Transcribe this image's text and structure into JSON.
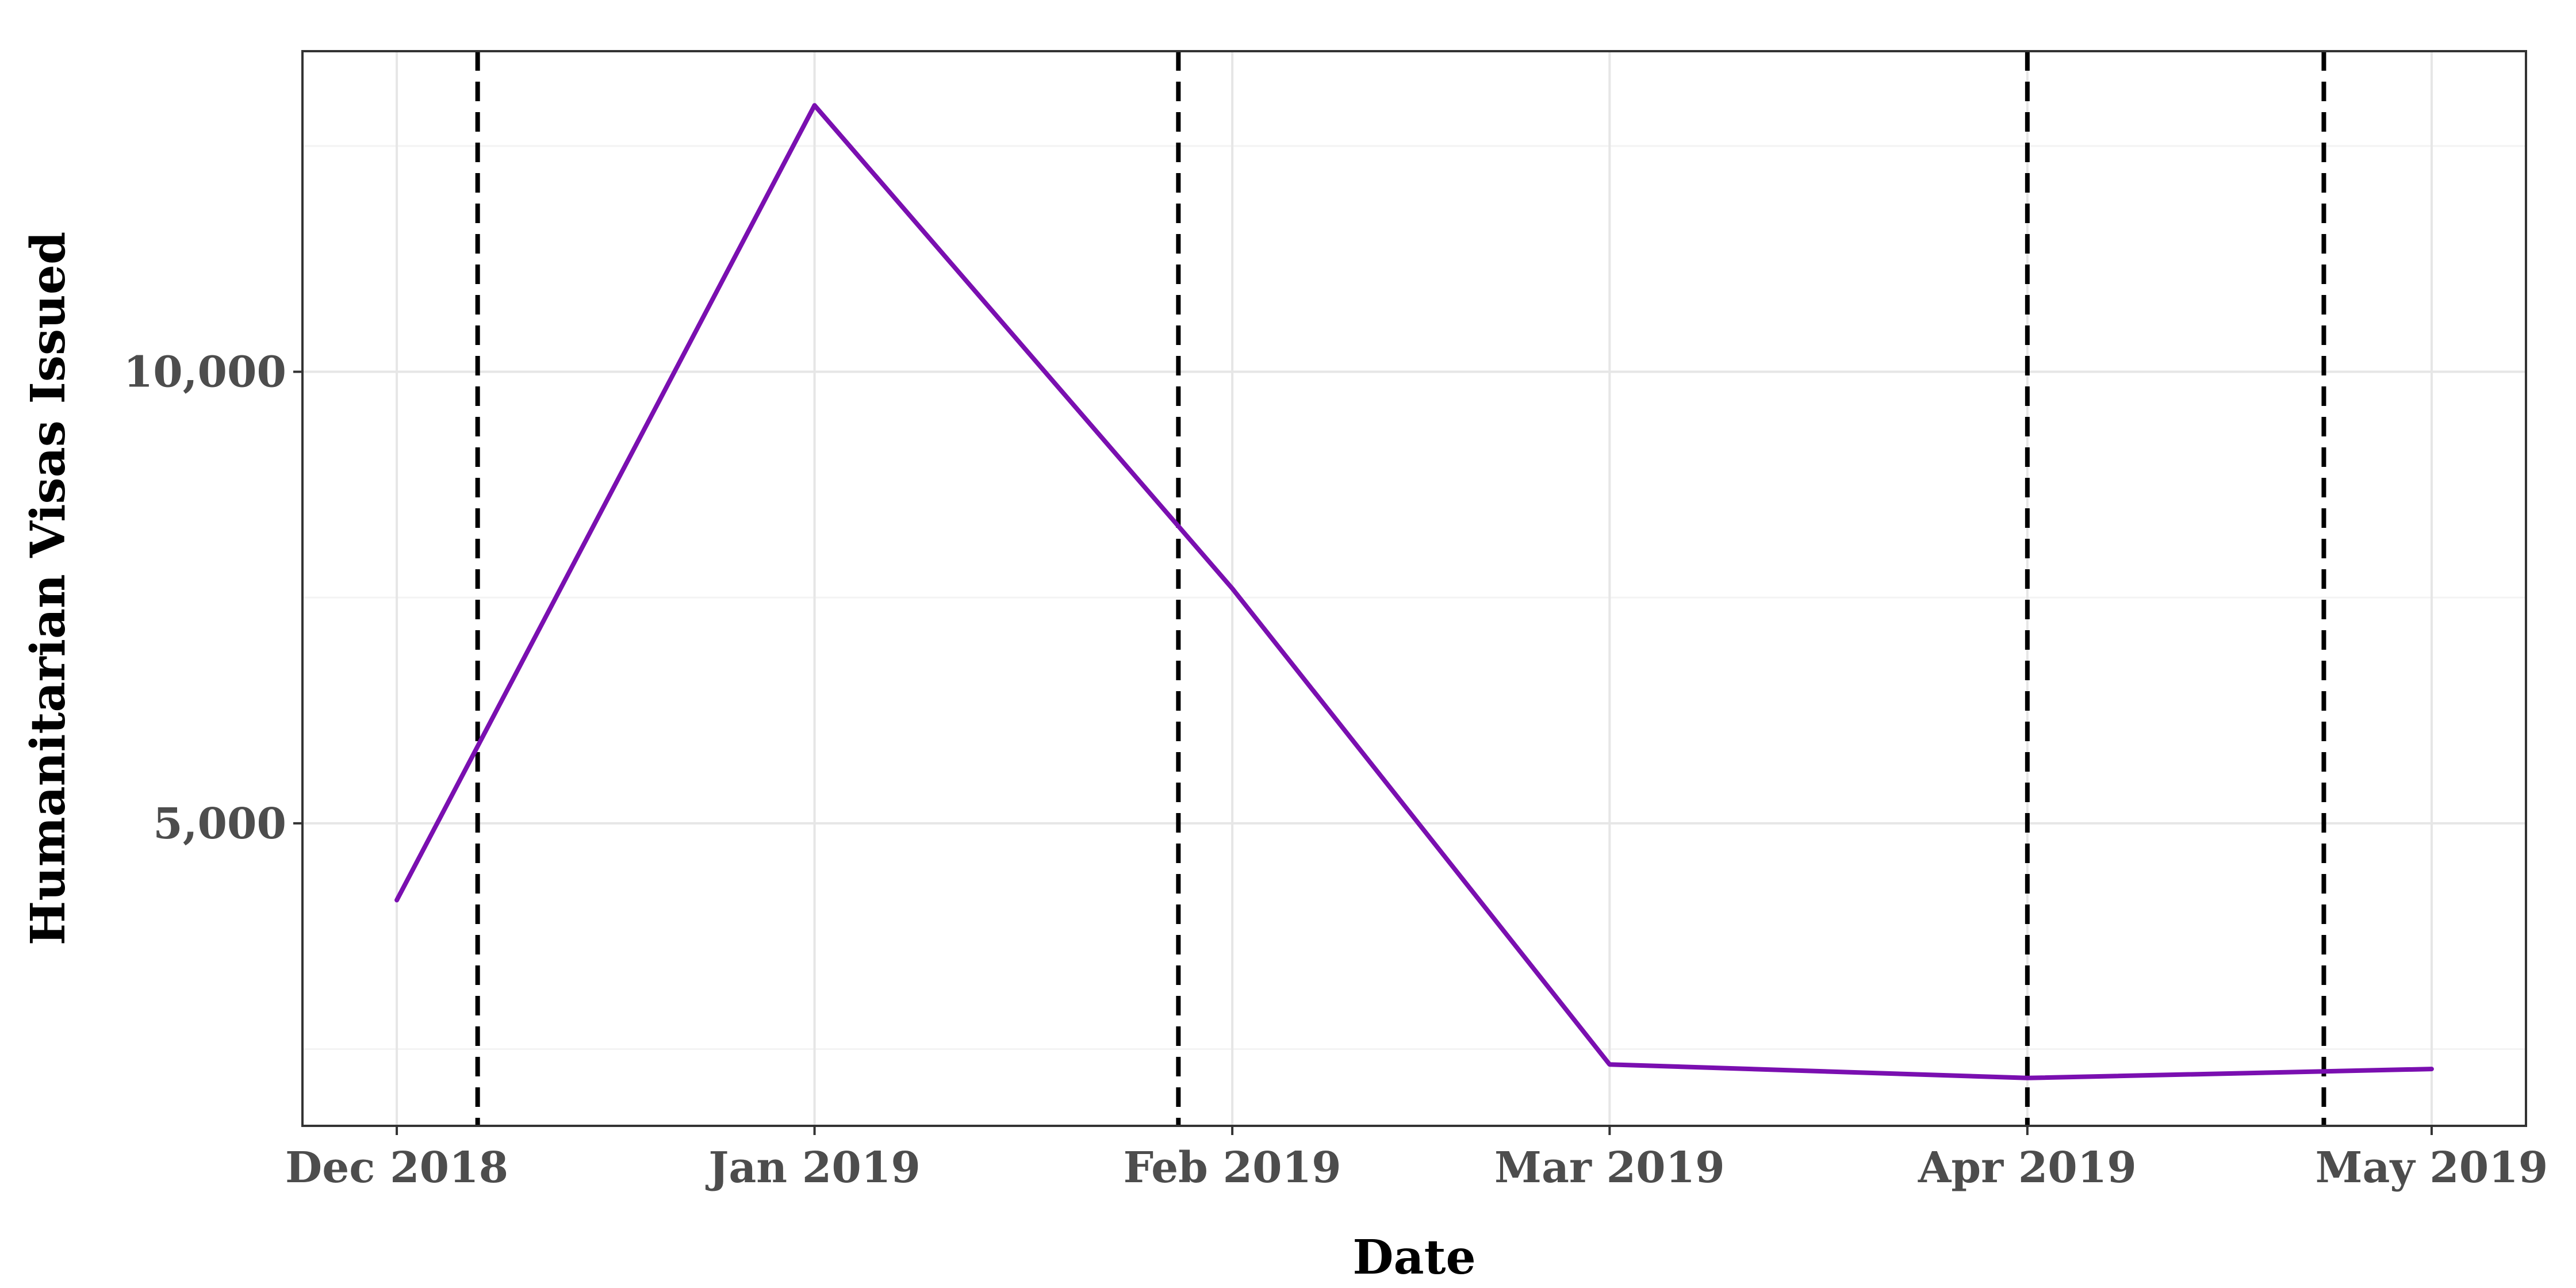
{
  "chart_data": {
    "type": "line",
    "title": "",
    "xlabel": "Date",
    "ylabel": "Humanitarian Visas Issued",
    "x_ticks": [
      {
        "date": "2018-12-01",
        "label": "Dec 2018"
      },
      {
        "date": "2019-01-01",
        "label": "Jan 2019"
      },
      {
        "date": "2019-02-01",
        "label": "Feb 2019"
      },
      {
        "date": "2019-03-01",
        "label": "Mar 2019"
      },
      {
        "date": "2019-04-01",
        "label": "Apr 2019"
      },
      {
        "date": "2019-05-01",
        "label": "May 2019"
      }
    ],
    "y_ticks": [
      {
        "value": 5000,
        "label": "5,000"
      },
      {
        "value": 10000,
        "label": "10,000"
      }
    ],
    "y_minor": [
      2500,
      7500,
      12500
    ],
    "xlim": [
      "2018-11-24",
      "2019-05-08"
    ],
    "ylim": [
      1650,
      13550
    ],
    "series": [
      {
        "color": "#7a0fb0",
        "points": [
          {
            "x": "2018-12-01",
            "y": 4150
          },
          {
            "x": "2019-01-01",
            "y": 12950
          },
          {
            "x": "2019-02-01",
            "y": 7600
          },
          {
            "x": "2019-03-01",
            "y": 2330
          },
          {
            "x": "2019-04-01",
            "y": 2180
          },
          {
            "x": "2019-05-01",
            "y": 2280
          }
        ]
      }
    ],
    "vlines": [
      "2018-12-07",
      "2019-01-28",
      "2019-04-01",
      "2019-04-23"
    ],
    "vline_color": "#000000",
    "grid": true,
    "legend": "none"
  }
}
